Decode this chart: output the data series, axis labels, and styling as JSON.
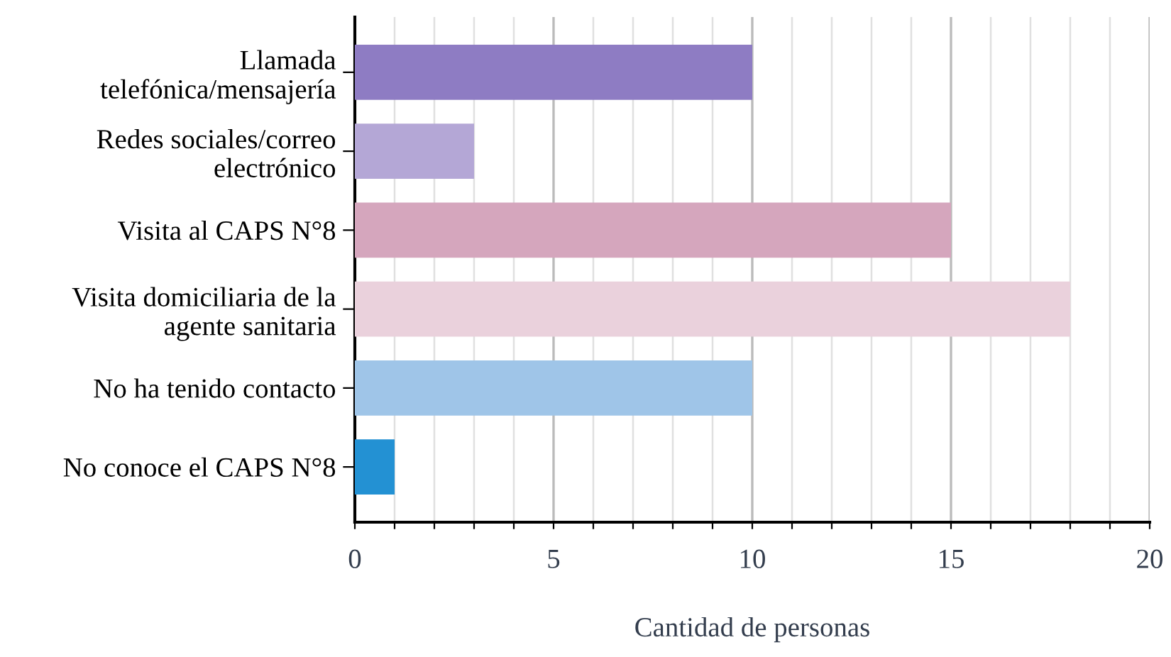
{
  "chart_data": {
    "type": "bar",
    "orientation": "horizontal",
    "categories": [
      "Llamada\ntelefónica/mensajería",
      "Redes sociales/correo\nelectrónico",
      "Visita al CAPS N°8",
      "Visita domiciliaria de la\nagente sanitaria",
      "No ha tenido contacto",
      "No conoce el CAPS N°8"
    ],
    "values": [
      10,
      3,
      15,
      18,
      10,
      1
    ],
    "colors": [
      "#8e7cc3",
      "#b4a7d6",
      "#d5a6bd",
      "#ead1dc",
      "#9fc5e8",
      "#2391d3"
    ],
    "xlabel": "Cantidad de personas",
    "xlim": [
      0,
      20
    ],
    "xticks": [
      0,
      {
        "value": 1,
        "label": null
      },
      {
        "value": 2,
        "label": null
      },
      {
        "value": 3,
        "label": null
      },
      {
        "value": 4,
        "label": null
      },
      5,
      {
        "value": 6,
        "label": null
      },
      {
        "value": 7,
        "label": null
      },
      {
        "value": 8,
        "label": null
      },
      {
        "value": 9,
        "label": null
      },
      10,
      {
        "value": 11,
        "label": null
      },
      {
        "value": 12,
        "label": null
      },
      {
        "value": 13,
        "label": null
      },
      {
        "value": 14,
        "label": null
      },
      15,
      {
        "value": 16,
        "label": null
      },
      {
        "value": 17,
        "label": null
      },
      {
        "value": 18,
        "label": null
      },
      {
        "value": 19,
        "label": null
      },
      20
    ],
    "grid": "x",
    "legend": false
  }
}
